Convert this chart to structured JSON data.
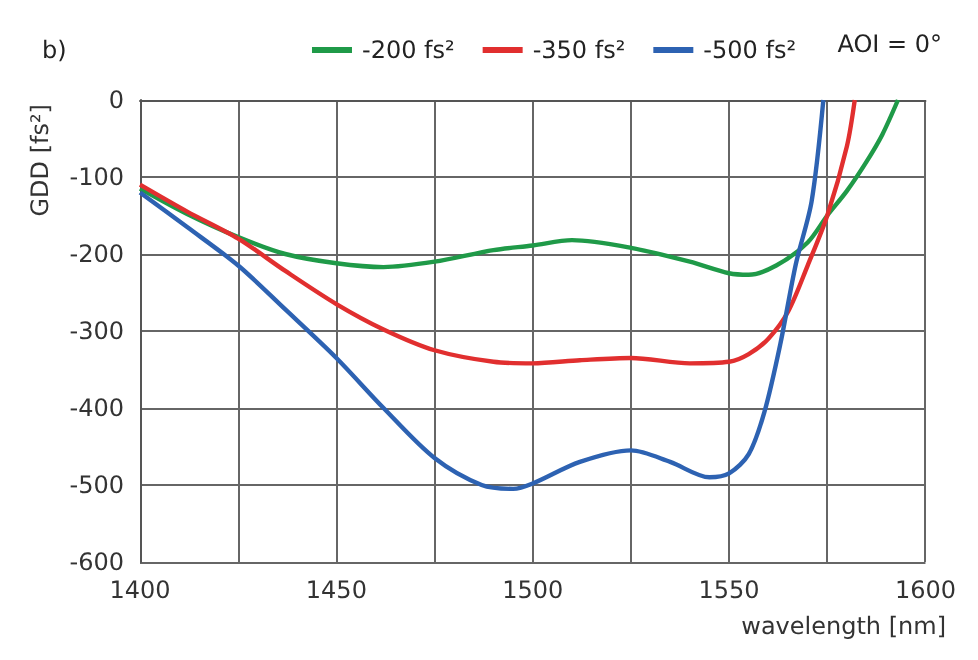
{
  "chart_data": {
    "type": "line",
    "title": "b)",
    "xlabel": "wavelength [nm]",
    "ylabel": "GDD [fs²]",
    "annotations": [
      "AOI = 0°"
    ],
    "legend": "top right",
    "grid": true,
    "marker": "none",
    "line_style": "solid",
    "xlim": [
      1400,
      1600
    ],
    "ylim": [
      -600,
      0
    ],
    "xticks": [
      1400,
      {
        "value": 1425,
        "label": null
      },
      1450,
      {
        "value": 1475,
        "label": null
      },
      1500,
      {
        "value": 1525,
        "label": null
      },
      1550,
      {
        "value": 1575,
        "label": null
      },
      1600
    ],
    "yticks": [
      -600,
      -500,
      -400,
      -300,
      -200,
      -100,
      0
    ],
    "series": [
      {
        "name": "-200 fs²",
        "color": "#1f9a48",
        "x": [
          1400,
          1412,
          1425,
          1437,
          1450,
          1462,
          1475,
          1490,
          1500,
          1510,
          1525,
          1540,
          1550,
          1555,
          1562,
          1570,
          1575,
          1580,
          1585,
          1589,
          1593
        ],
        "values": [
          -115,
          -148,
          -178,
          -200,
          -212,
          -217,
          -210,
          -195,
          -189,
          -182,
          -192,
          -210,
          -225,
          -227,
          -215,
          -185,
          -150,
          -118,
          -80,
          -45,
          0
        ]
      },
      {
        "name": "-350 fs²",
        "color": "#e12f2f",
        "x": [
          1400,
          1412,
          1425,
          1437,
          1450,
          1462,
          1475,
          1490,
          1500,
          1512,
          1525,
          1540,
          1550,
          1555,
          1560,
          1565,
          1570,
          1575,
          1580,
          1582
        ],
        "values": [
          -110,
          -145,
          -180,
          -222,
          -265,
          -298,
          -325,
          -340,
          -342,
          -338,
          -335,
          -342,
          -340,
          -330,
          -310,
          -275,
          -215,
          -150,
          -60,
          0
        ]
      },
      {
        "name": "-500 fs²",
        "color": "#2d62b2",
        "x": [
          1400,
          1412,
          1425,
          1437,
          1450,
          1462,
          1475,
          1487,
          1495,
          1500,
          1512,
          1525,
          1535,
          1545,
          1550,
          1555,
          1559,
          1563,
          1567,
          1571,
          1574
        ],
        "values": [
          -120,
          -165,
          -215,
          -272,
          -335,
          -400,
          -465,
          -500,
          -505,
          -498,
          -470,
          -455,
          -470,
          -490,
          -485,
          -460,
          -405,
          -318,
          -213,
          -132,
          0
        ]
      }
    ]
  }
}
